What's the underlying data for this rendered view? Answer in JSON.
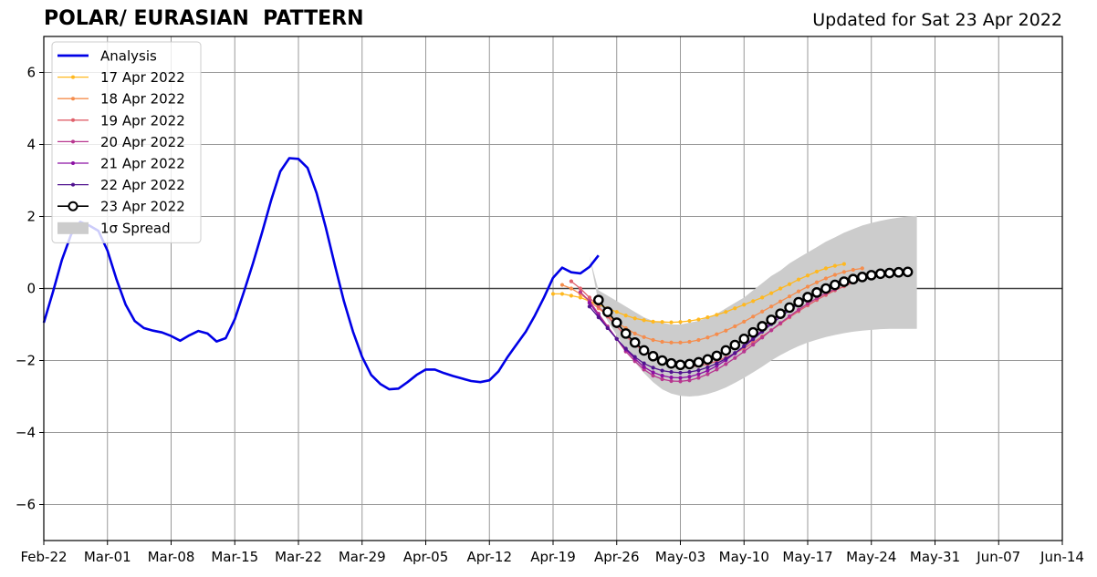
{
  "chart_data": {
    "type": "line",
    "title": "POLAR/ EURASIAN  PATTERN",
    "subtitle": "Updated for Sat 23 Apr 2022",
    "x_ticks": [
      "Feb-22",
      "Mar-01",
      "Mar-08",
      "Mar-15",
      "Mar-22",
      "Mar-29",
      "Apr-05",
      "Apr-12",
      "Apr-19",
      "Apr-26",
      "May-03",
      "May-10",
      "May-17",
      "May-24",
      "May-31",
      "Jun-07",
      "Jun-14"
    ],
    "xlim": [
      "2022-02-22",
      "2022-06-14"
    ],
    "ylim": [
      -7,
      7
    ],
    "y_ticks": [
      -6,
      -4,
      -2,
      0,
      2,
      4,
      6
    ],
    "y_tick_labels": [
      "−6",
      "−4",
      "−2",
      "0",
      "2",
      "4",
      "6"
    ],
    "grid": true,
    "legend_placement": "top-left",
    "spread": {
      "label": "1σ Spread",
      "color": "#cccccc",
      "start": "2022-04-23",
      "upper": [
        0.9,
        -0.05,
        -0.2,
        -0.35,
        -0.5,
        -0.65,
        -0.8,
        -0.9,
        -0.95,
        -1.0,
        -1.0,
        -0.95,
        -0.9,
        -0.8,
        -0.7,
        -0.55,
        -0.4,
        -0.25,
        -0.05,
        0.15,
        0.35,
        0.5,
        0.7,
        0.85,
        1.0,
        1.15,
        1.3,
        1.42,
        1.55,
        1.65,
        1.75,
        1.82,
        1.88,
        1.93,
        1.97,
        2.0,
        2.02
      ],
      "lower": [
        0.9,
        -0.4,
        -0.9,
        -1.3,
        -1.7,
        -2.05,
        -2.35,
        -2.6,
        -2.8,
        -2.92,
        -2.98,
        -3.0,
        -2.98,
        -2.93,
        -2.85,
        -2.75,
        -2.62,
        -2.48,
        -2.33,
        -2.17,
        -2.0,
        -1.85,
        -1.72,
        -1.6,
        -1.5,
        -1.42,
        -1.35,
        -1.29,
        -1.24,
        -1.2,
        -1.17,
        -1.15,
        -1.13,
        -1.12,
        -1.12,
        -1.12,
        -1.12
      ]
    },
    "series": [
      {
        "name": "Analysis",
        "color": "#0000e6",
        "start": "2022-02-22",
        "values": [
          -0.95,
          -0.1,
          0.8,
          1.5,
          1.85,
          1.75,
          1.6,
          1.05,
          0.25,
          -0.45,
          -0.9,
          -1.1,
          -1.17,
          -1.22,
          -1.32,
          -1.45,
          -1.3,
          -1.18,
          -1.25,
          -1.47,
          -1.38,
          -0.85,
          -0.1,
          0.7,
          1.55,
          2.45,
          3.25,
          3.62,
          3.6,
          3.35,
          2.65,
          1.7,
          0.65,
          -0.35,
          -1.2,
          -1.9,
          -2.4,
          -2.65,
          -2.8,
          -2.78,
          -2.6,
          -2.4,
          -2.25,
          -2.25,
          -2.35,
          -2.43,
          -2.5,
          -2.57,
          -2.6,
          -2.55,
          -2.3,
          -1.9,
          -1.55,
          -1.2,
          -0.75,
          -0.25,
          0.3,
          0.58,
          0.45,
          0.42,
          0.6,
          0.92
        ]
      },
      {
        "name": "17 Apr 2022",
        "color": "#ffb81f",
        "start": "2022-04-19",
        "values": [
          -0.15,
          -0.15,
          -0.2,
          -0.25,
          -0.35,
          -0.45,
          -0.55,
          -0.65,
          -0.75,
          -0.83,
          -0.88,
          -0.92,
          -0.93,
          -0.94,
          -0.93,
          -0.9,
          -0.86,
          -0.8,
          -0.73,
          -0.65,
          -0.55,
          -0.45,
          -0.35,
          -0.25,
          -0.13,
          0.0,
          0.12,
          0.25,
          0.36,
          0.47,
          0.56,
          0.63,
          0.68
        ]
      },
      {
        "name": "18 Apr 2022",
        "color": "#f58d4d",
        "start": "2022-04-20",
        "values": [
          0.1,
          0.0,
          -0.15,
          -0.35,
          -0.55,
          -0.75,
          -0.95,
          -1.1,
          -1.25,
          -1.35,
          -1.43,
          -1.48,
          -1.5,
          -1.5,
          -1.48,
          -1.43,
          -1.36,
          -1.27,
          -1.17,
          -1.05,
          -0.92,
          -0.78,
          -0.64,
          -0.5,
          -0.36,
          -0.22,
          -0.08,
          0.05,
          0.17,
          0.28,
          0.38,
          0.46,
          0.52,
          0.56
        ]
      },
      {
        "name": "19 Apr 2022",
        "color": "#e0606b",
        "start": "2022-04-21",
        "values": [
          0.2,
          0.0,
          -0.25,
          -0.5,
          -0.78,
          -1.05,
          -1.32,
          -1.55,
          -1.75,
          -1.9,
          -2.02,
          -2.1,
          -2.15,
          -2.17,
          -2.15,
          -2.1,
          -2.02,
          -1.92,
          -1.8,
          -1.66,
          -1.5,
          -1.33,
          -1.16,
          -0.98,
          -0.8,
          -0.63,
          -0.47,
          -0.32,
          -0.18,
          -0.05,
          0.06,
          0.17,
          0.27,
          0.36,
          0.44
        ]
      },
      {
        "name": "20 Apr 2022",
        "color": "#b8368f",
        "start": "2022-04-22",
        "values": [
          -0.1,
          -0.35,
          -0.7,
          -1.05,
          -1.4,
          -1.75,
          -2.02,
          -2.25,
          -2.42,
          -2.52,
          -2.57,
          -2.58,
          -2.55,
          -2.48,
          -2.38,
          -2.25,
          -2.1,
          -1.93,
          -1.75,
          -1.56,
          -1.36,
          -1.16,
          -0.96,
          -0.77,
          -0.59,
          -0.42,
          -0.27,
          -0.13,
          -0.02
        ]
      },
      {
        "name": "21 Apr 2022",
        "color": "#8c10a3",
        "start": "2022-04-23",
        "values": [
          -0.4,
          -0.75,
          -1.1,
          -1.4,
          -1.7,
          -1.95,
          -2.18,
          -2.33,
          -2.42,
          -2.47,
          -2.48,
          -2.45,
          -2.38,
          -2.28,
          -2.15,
          -1.99,
          -1.8,
          -1.6,
          -1.38,
          -1.16,
          -0.94,
          -0.73,
          -0.54,
          -0.37,
          -0.22,
          -0.08,
          0.05,
          0.16,
          0.25
        ]
      },
      {
        "name": "22 Apr 2022",
        "color": "#50128f",
        "start": "2022-04-23",
        "values": [
          -0.5,
          -0.8,
          -1.1,
          -1.4,
          -1.67,
          -1.9,
          -2.08,
          -2.2,
          -2.28,
          -2.32,
          -2.34,
          -2.32,
          -2.27,
          -2.19,
          -2.08,
          -1.95,
          -1.79,
          -1.61,
          -1.41,
          -1.2,
          -0.99,
          -0.79,
          -0.6,
          -0.43,
          -0.28,
          -0.14,
          -0.02,
          0.09,
          0.18,
          0.26,
          0.33
        ]
      },
      {
        "name": "23 Apr 2022",
        "color": "#000000",
        "start": "2022-04-24",
        "values": [
          -0.32,
          -0.65,
          -0.95,
          -1.25,
          -1.5,
          -1.72,
          -1.88,
          -2.0,
          -2.08,
          -2.12,
          -2.1,
          -2.05,
          -1.97,
          -1.87,
          -1.72,
          -1.57,
          -1.4,
          -1.22,
          -1.05,
          -0.87,
          -0.7,
          -0.53,
          -0.38,
          -0.24,
          -0.11,
          0.0,
          0.1,
          0.19,
          0.26,
          0.32,
          0.37,
          0.41,
          0.43,
          0.45,
          0.46
        ]
      }
    ]
  }
}
